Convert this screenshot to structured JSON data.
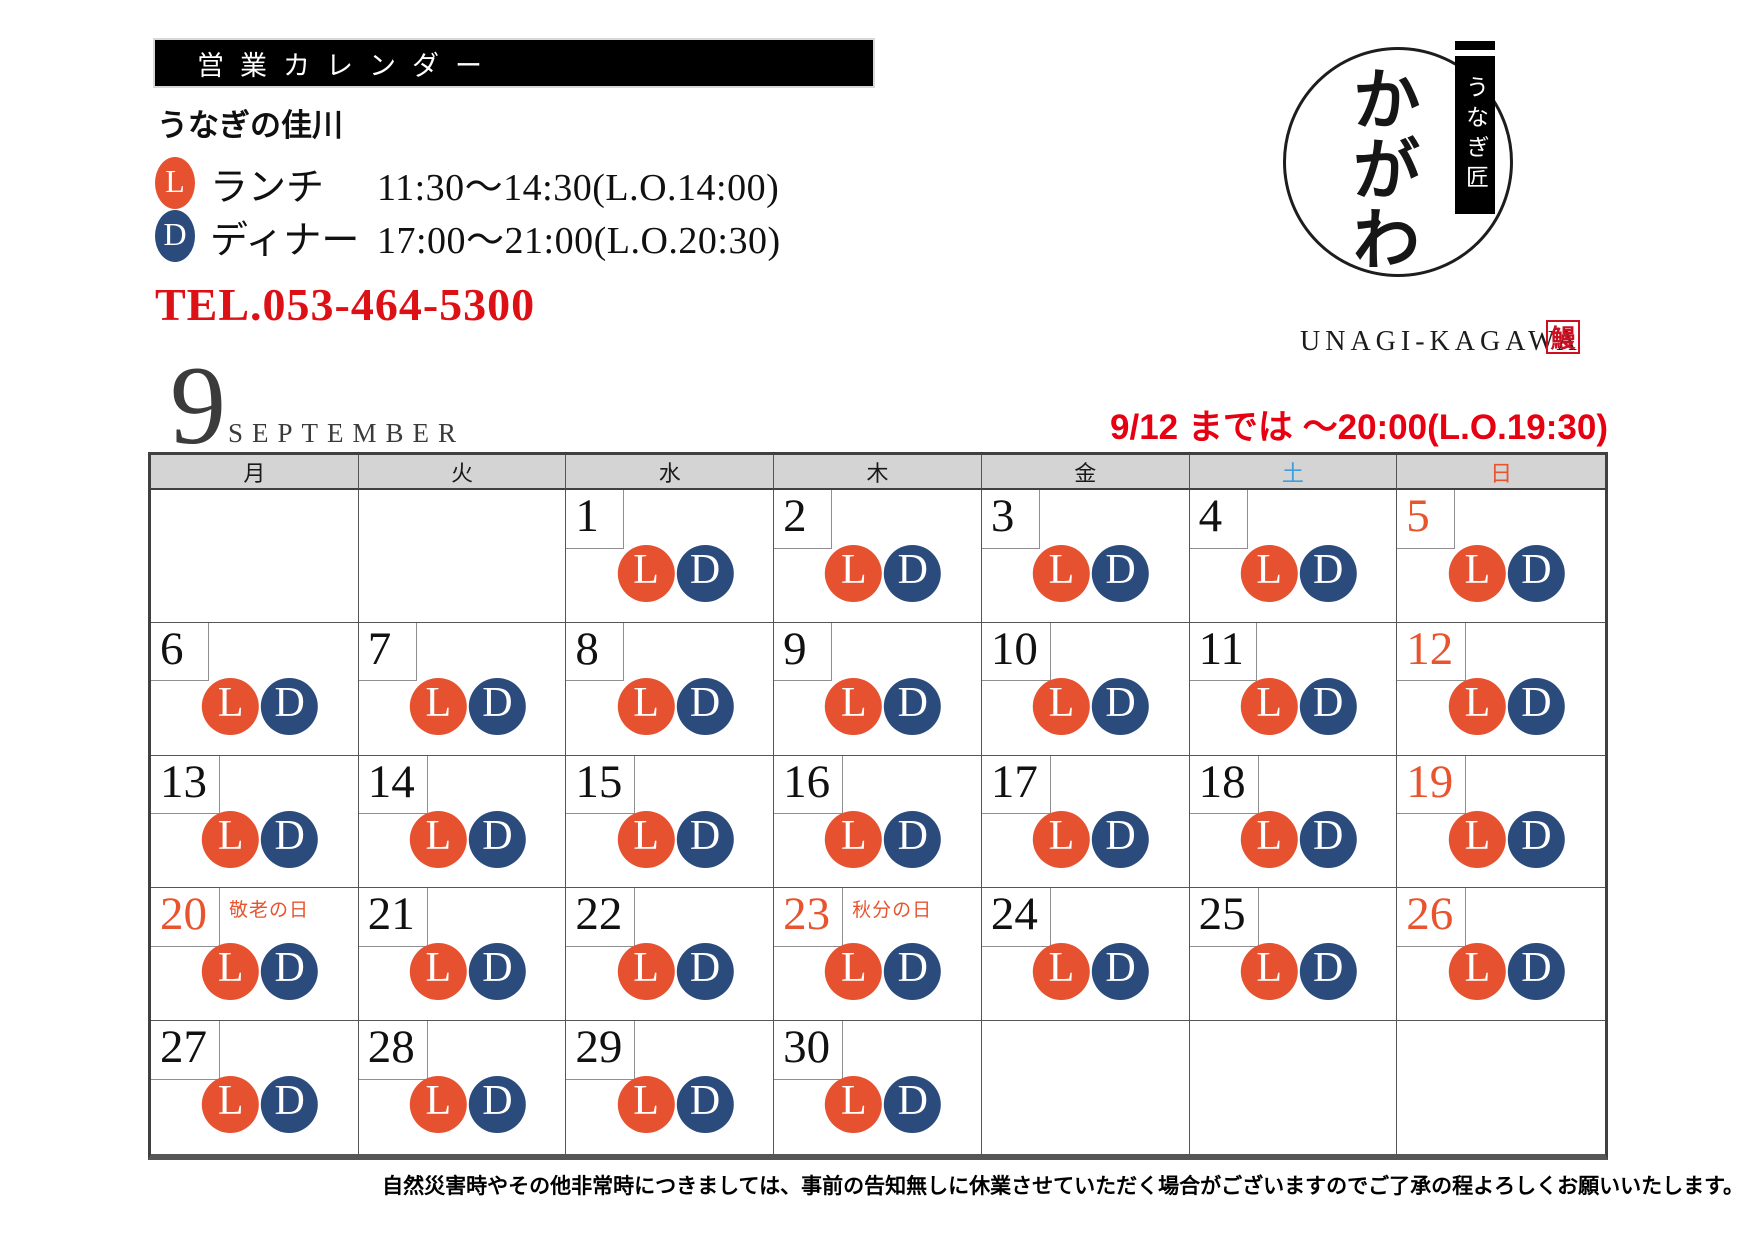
{
  "header": {
    "title": "営業カレンダー",
    "shop_name": "うなぎの佳川",
    "hours": [
      {
        "badge": "L",
        "label": "ランチ",
        "time": "11:30～14:30(L.O.14:00)"
      },
      {
        "badge": "D",
        "label": "ディナー",
        "time": "17:00～21:00(L.O.20:30)"
      }
    ],
    "tel": "TEL.053-464-5300"
  },
  "logo": {
    "vertical_name": "かがわ",
    "ribbon": "うなぎ匠",
    "romaji": "UNAGI-KAGAWA",
    "seal": "鰻"
  },
  "month": {
    "number": "9",
    "name": "SEPTEMBER"
  },
  "notice": "9/12 までは ～20:00(L.O.19:30)",
  "calendar": {
    "weekdays": [
      {
        "label": "月",
        "en": "mon",
        "color": "#1a1a1a"
      },
      {
        "label": "火",
        "en": "tue",
        "color": "#1a1a1a"
      },
      {
        "label": "水",
        "en": "wed",
        "color": "#1a1a1a"
      },
      {
        "label": "木",
        "en": "thu",
        "color": "#1a1a1a"
      },
      {
        "label": "金",
        "en": "fri",
        "color": "#1a1a1a"
      },
      {
        "label": "土",
        "en": "sat",
        "color": "#3f9edb"
      },
      {
        "label": "日",
        "en": "sun",
        "color": "#e8542e"
      }
    ],
    "weeks": [
      [
        {},
        {},
        {
          "day": "1",
          "badges": [
            "L",
            "D"
          ]
        },
        {
          "day": "2",
          "badges": [
            "L",
            "D"
          ]
        },
        {
          "day": "3",
          "badges": [
            "L",
            "D"
          ]
        },
        {
          "day": "4",
          "badges": [
            "L",
            "D"
          ]
        },
        {
          "day": "5",
          "red": true,
          "badges": [
            "L",
            "D"
          ]
        }
      ],
      [
        {
          "day": "6",
          "badges": [
            "L",
            "D"
          ]
        },
        {
          "day": "7",
          "badges": [
            "L",
            "D"
          ]
        },
        {
          "day": "8",
          "badges": [
            "L",
            "D"
          ]
        },
        {
          "day": "9",
          "badges": [
            "L",
            "D"
          ]
        },
        {
          "day": "10",
          "badges": [
            "L",
            "D"
          ]
        },
        {
          "day": "11",
          "badges": [
            "L",
            "D"
          ]
        },
        {
          "day": "12",
          "red": true,
          "badges": [
            "L",
            "D"
          ]
        }
      ],
      [
        {
          "day": "13",
          "badges": [
            "L",
            "D"
          ]
        },
        {
          "day": "14",
          "badges": [
            "L",
            "D"
          ]
        },
        {
          "day": "15",
          "badges": [
            "L",
            "D"
          ]
        },
        {
          "day": "16",
          "badges": [
            "L",
            "D"
          ]
        },
        {
          "day": "17",
          "badges": [
            "L",
            "D"
          ]
        },
        {
          "day": "18",
          "badges": [
            "L",
            "D"
          ]
        },
        {
          "day": "19",
          "red": true,
          "badges": [
            "L",
            "D"
          ]
        }
      ],
      [
        {
          "day": "20",
          "red": true,
          "holiday": "敬老の日",
          "badges": [
            "L",
            "D"
          ]
        },
        {
          "day": "21",
          "badges": [
            "L",
            "D"
          ]
        },
        {
          "day": "22",
          "badges": [
            "L",
            "D"
          ]
        },
        {
          "day": "23",
          "red": true,
          "holiday": "秋分の日",
          "badges": [
            "L",
            "D"
          ]
        },
        {
          "day": "24",
          "badges": [
            "L",
            "D"
          ]
        },
        {
          "day": "25",
          "badges": [
            "L",
            "D"
          ]
        },
        {
          "day": "26",
          "red": true,
          "badges": [
            "L",
            "D"
          ]
        }
      ],
      [
        {
          "day": "27",
          "badges": [
            "L",
            "D"
          ]
        },
        {
          "day": "28",
          "badges": [
            "L",
            "D"
          ]
        },
        {
          "day": "29",
          "badges": [
            "L",
            "D"
          ]
        },
        {
          "day": "30",
          "badges": [
            "L",
            "D"
          ]
        },
        {},
        {},
        {}
      ]
    ]
  },
  "footer": {
    "disclaimer": "自然災害時やその他非常時につきましては、事前の告知無しに休業させていただく場合がございますのでご了承の程よろしくお願いいたします。"
  },
  "colors": {
    "badge_lunch_orange": "#e65130",
    "badge_dinner_navy": "#2b4b7c",
    "red_date": "#e8542e",
    "saturday_blue": "#3f9edb",
    "tel_red": "#dd1015",
    "notice_red": "#e60012",
    "weekday_header_bg": "#d4d4d4",
    "seal_red": "#cc1022"
  }
}
